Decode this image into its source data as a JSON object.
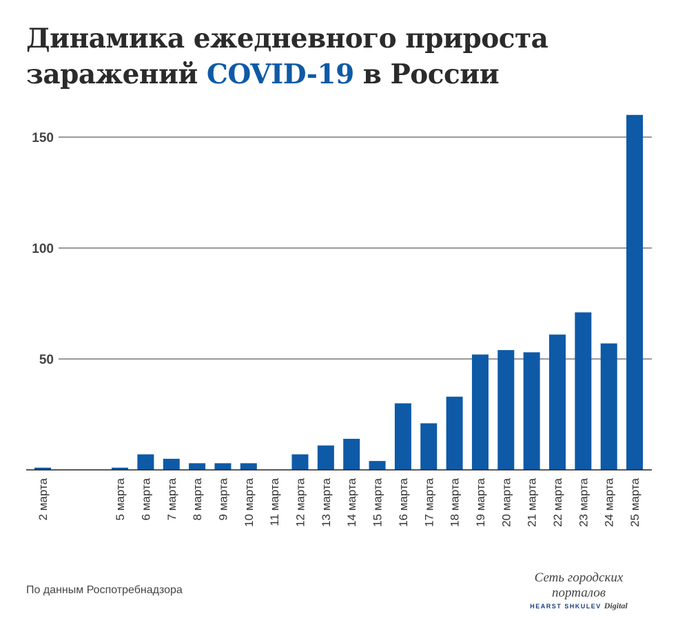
{
  "title": {
    "line1": "Динамика ежедневного прироста",
    "line2_pre": "заражений ",
    "line2_accent": "COVID-19",
    "line2_post": " в России"
  },
  "source": "По данным Роспотребнадзора",
  "logo": {
    "line1": "Сеть городских порталов",
    "line2": "HEARST SHKULEV",
    "line3": "Digital"
  },
  "colors": {
    "bar": "#0e5aa7",
    "accent": "#0e5aa7",
    "text": "#2b2b2b"
  },
  "chart_data": {
    "type": "bar",
    "title": "Динамика ежедневного прироста заражений COVID-19 в России",
    "xlabel": "",
    "ylabel": "",
    "ylim": [
      0,
      165
    ],
    "yticks": [
      50,
      100,
      150
    ],
    "grid": true,
    "categories": [
      "2 марта",
      "",
      "",
      "5 марта",
      "6 марта",
      "7 марта",
      "8 марта",
      "9 марта",
      "10 марта",
      "11 марта",
      "12 марта",
      "13 марта",
      "14 марта",
      "15 марта",
      "16 марта",
      "17 марта",
      "18 марта",
      "19 марта",
      "20 марта",
      "21 марта",
      "22 марта",
      "23 марта",
      "24 марта",
      "25 марта"
    ],
    "values": [
      1,
      0,
      0,
      1,
      7,
      5,
      3,
      3,
      3,
      0,
      7,
      11,
      14,
      4,
      30,
      21,
      33,
      52,
      54,
      53,
      61,
      71,
      57,
      160
    ]
  }
}
